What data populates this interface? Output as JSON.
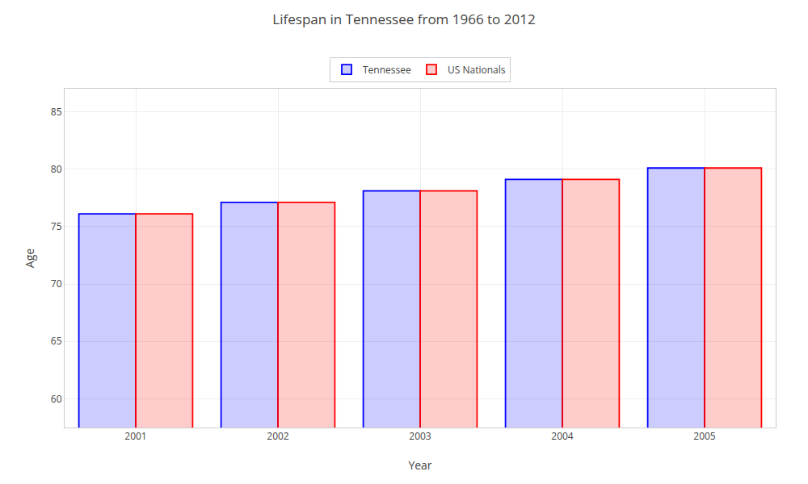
{
  "chart_data": {
    "type": "bar",
    "title": "Lifespan in Tennessee from 1966 to 2012",
    "xlabel": "Year",
    "ylabel": "Age",
    "categories": [
      "2001",
      "2002",
      "2003",
      "2004",
      "2005"
    ],
    "series": [
      {
        "name": "Tennessee",
        "color": "#0000ff",
        "values": [
          76.1,
          77.1,
          78.1,
          79.1,
          80.1
        ]
      },
      {
        "name": "US Nationals",
        "color": "#ff0000",
        "values": [
          76.1,
          77.1,
          78.1,
          79.1,
          80.1
        ]
      }
    ],
    "ylim": [
      57.5,
      87
    ],
    "yticks": [
      60,
      65,
      70,
      75,
      80,
      85
    ],
    "grid": true,
    "legend": "top"
  }
}
